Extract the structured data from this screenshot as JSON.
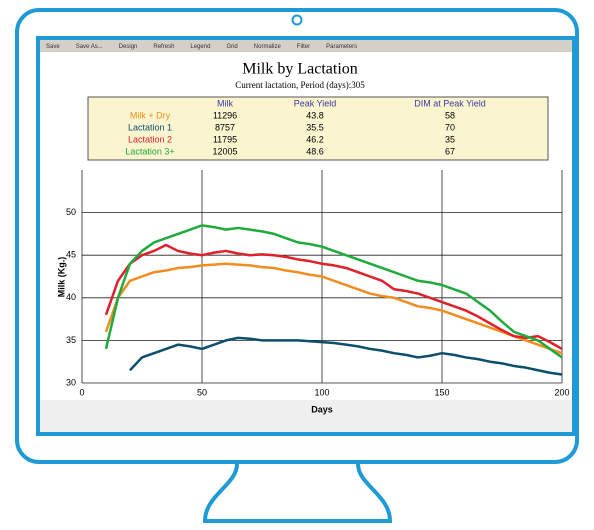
{
  "toolbar": [
    "Save",
    "Save As...",
    "Design",
    "Refresh",
    "Legend",
    "Grid",
    "Normalize",
    "Filter",
    "Parameters"
  ],
  "chart_data": {
    "type": "line",
    "title": "Milk by Lactation",
    "subtitle": "Current lactation, Period (days):305",
    "summary": {
      "columns": [
        "Milk",
        "Peak Yield",
        "DIM at Peak Yield"
      ],
      "rows": [
        {
          "name": "Milk + Dry",
          "values": [
            11296,
            43.8,
            58
          ]
        },
        {
          "name": "Lactation 1",
          "values": [
            8757,
            35.5,
            70
          ]
        },
        {
          "name": "Lactation 2",
          "values": [
            11795,
            46.2,
            35
          ]
        },
        {
          "name": "Lactation 3+",
          "values": [
            12005,
            48.6,
            67
          ]
        }
      ]
    },
    "x_label": "Days",
    "y_label": "Milk (Kg.)",
    "xlim": [
      0,
      200
    ],
    "xticks": [
      0,
      50,
      100,
      150,
      200
    ],
    "ylim": [
      30,
      55
    ],
    "yticks": [
      30,
      35,
      40,
      45,
      50
    ],
    "grid": true,
    "x": [
      5,
      10,
      15,
      20,
      25,
      30,
      35,
      40,
      45,
      50,
      55,
      60,
      65,
      70,
      75,
      80,
      85,
      90,
      95,
      100,
      105,
      110,
      115,
      120,
      125,
      130,
      135,
      140,
      145,
      150,
      155,
      160,
      165,
      170,
      175,
      180,
      185,
      190,
      195,
      200
    ],
    "series": [
      {
        "name": "Milk + Dry",
        "color": "#f28c1e",
        "values": [
          null,
          36,
          40,
          42,
          42.5,
          43,
          43.2,
          43.5,
          43.6,
          43.8,
          43.9,
          44,
          43.9,
          43.8,
          43.6,
          43.5,
          43.2,
          43,
          42.7,
          42.5,
          42,
          41.5,
          41,
          40.5,
          40.2,
          40,
          39.5,
          39,
          38.8,
          38.5,
          38,
          37.5,
          37,
          36.5,
          36,
          35.5,
          35,
          34.5,
          34,
          33.5
        ]
      },
      {
        "name": "Lactation 1",
        "color": "#0b4f6c",
        "values": [
          null,
          null,
          null,
          31.5,
          33,
          33.5,
          34,
          34.5,
          34.3,
          34,
          34.5,
          35,
          35.3,
          35.2,
          35,
          35,
          35,
          35,
          34.9,
          34.8,
          34.7,
          34.5,
          34.3,
          34,
          33.8,
          33.5,
          33.3,
          33,
          33.2,
          33.5,
          33.3,
          33,
          32.8,
          32.5,
          32.3,
          32,
          31.8,
          31.5,
          31.2,
          31
        ]
      },
      {
        "name": "Lactation 2",
        "color": "#e0202a",
        "values": [
          null,
          38,
          42,
          44,
          45,
          45.5,
          46.2,
          45.5,
          45.2,
          45,
          45.3,
          45.5,
          45.2,
          45,
          45.1,
          45,
          44.8,
          44.5,
          44.3,
          44,
          43.8,
          43.5,
          43,
          42.5,
          42,
          41,
          40.8,
          40.5,
          40,
          39.5,
          39,
          38.5,
          37.8,
          37,
          36.2,
          35.5,
          35.3,
          35.5,
          34.8,
          34
        ]
      },
      {
        "name": "Lactation 3+",
        "color": "#1fab3c",
        "values": [
          null,
          34,
          40,
          44,
          45.5,
          46.5,
          47,
          47.5,
          48,
          48.5,
          48.3,
          48,
          48.2,
          48,
          47.8,
          47.5,
          47,
          46.5,
          46.3,
          46,
          45.5,
          45,
          44.5,
          44,
          43.5,
          43,
          42.5,
          42,
          41.8,
          41.5,
          41,
          40.5,
          39.5,
          38.5,
          37.2,
          36,
          35.5,
          35,
          34,
          33
        ]
      }
    ]
  }
}
